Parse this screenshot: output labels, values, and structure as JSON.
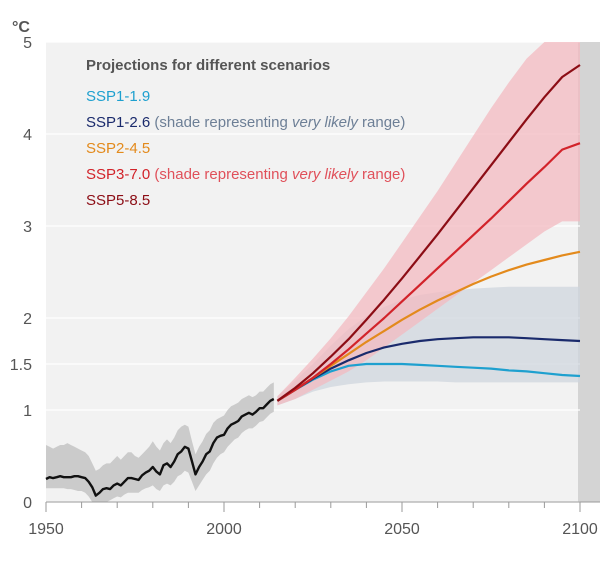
{
  "chart_data": {
    "type": "line",
    "unit_label": "°C",
    "xlim": [
      1950,
      2100
    ],
    "ylim": [
      0,
      5
    ],
    "y_ticks": [
      0,
      1,
      1.5,
      2,
      3,
      4,
      5
    ],
    "y_tick_labels": [
      "0",
      "1",
      "1.5",
      "2",
      "3",
      "4",
      "5"
    ],
    "x_ticks": [
      1950,
      2000,
      2050,
      2100
    ],
    "x_tick_labels": [
      "1950",
      "2000",
      "2050",
      "2100"
    ],
    "grid": true,
    "legend": {
      "title": "Projections for different scenarios",
      "placement": "top-left",
      "items": [
        {
          "label": "SSP1-1.9",
          "note": null
        },
        {
          "label": "SSP1-2.6",
          "note": {
            "prefix": " (shade representing ",
            "emph": "very likely",
            "suffix": " range)"
          }
        },
        {
          "label": "SSP2-4.5",
          "note": null
        },
        {
          "label": "SSP3-7.0",
          "note": {
            "prefix": " (shade representing ",
            "emph": "very likely",
            "suffix": " range)"
          }
        },
        {
          "label": "SSP5-8.5",
          "note": null
        }
      ]
    },
    "colors": {
      "historical": "#111111",
      "SSP1-1.9": "#1ea0cf",
      "SSP1-2.6": "#1a2a6c",
      "SSP2-4.5": "#e38a1c",
      "SSP3-7.0": "#d2232a",
      "SSP5-8.5": "#8c0d15",
      "band_hist": "#c6c6c6",
      "band_ssp126": "#cfd6de",
      "band_ssp370": "#f3b9c0"
    },
    "historical": {
      "x": [
        1950,
        1951,
        1952,
        1953,
        1954,
        1955,
        1956,
        1957,
        1958,
        1959,
        1960,
        1961,
        1962,
        1963,
        1964,
        1965,
        1966,
        1967,
        1968,
        1969,
        1970,
        1971,
        1972,
        1973,
        1974,
        1975,
        1976,
        1977,
        1978,
        1979,
        1980,
        1981,
        1982,
        1983,
        1984,
        1985,
        1986,
        1987,
        1988,
        1989,
        1990,
        1991,
        1992,
        1993,
        1994,
        1995,
        1996,
        1997,
        1998,
        1999,
        2000,
        2001,
        2002,
        2003,
        2004,
        2005,
        2006,
        2007,
        2008,
        2009,
        2010,
        2011,
        2012,
        2013,
        2014
      ],
      "y": [
        0.25,
        0.27,
        0.26,
        0.27,
        0.28,
        0.27,
        0.27,
        0.27,
        0.28,
        0.28,
        0.27,
        0.26,
        0.22,
        0.16,
        0.07,
        0.1,
        0.14,
        0.15,
        0.14,
        0.18,
        0.2,
        0.18,
        0.22,
        0.26,
        0.26,
        0.25,
        0.24,
        0.29,
        0.32,
        0.34,
        0.38,
        0.33,
        0.3,
        0.4,
        0.42,
        0.38,
        0.44,
        0.52,
        0.55,
        0.6,
        0.58,
        0.44,
        0.3,
        0.38,
        0.44,
        0.52,
        0.55,
        0.64,
        0.7,
        0.72,
        0.73,
        0.8,
        0.84,
        0.86,
        0.88,
        0.93,
        0.95,
        0.97,
        0.95,
        0.98,
        1.02,
        1.02,
        1.06,
        1.1,
        1.12
      ],
      "band_lower": [
        0.15,
        0.15,
        0.15,
        0.15,
        0.15,
        0.15,
        0.14,
        0.14,
        0.13,
        0.12,
        0.12,
        0.1,
        0.06,
        0.0,
        0.0,
        0.0,
        0.0,
        0.0,
        0.02,
        0.04,
        0.06,
        0.05,
        0.08,
        0.1,
        0.1,
        0.1,
        0.1,
        0.13,
        0.15,
        0.16,
        0.18,
        0.14,
        0.12,
        0.18,
        0.2,
        0.18,
        0.22,
        0.28,
        0.3,
        0.34,
        0.32,
        0.22,
        0.12,
        0.18,
        0.24,
        0.3,
        0.34,
        0.42,
        0.48,
        0.52,
        0.54,
        0.6,
        0.64,
        0.68,
        0.7,
        0.75,
        0.78,
        0.8,
        0.8,
        0.83,
        0.87,
        0.88,
        0.92,
        0.96,
        0.98
      ],
      "band_upper": [
        0.62,
        0.6,
        0.58,
        0.6,
        0.62,
        0.62,
        0.64,
        0.62,
        0.6,
        0.58,
        0.56,
        0.54,
        0.5,
        0.42,
        0.34,
        0.36,
        0.4,
        0.42,
        0.42,
        0.46,
        0.5,
        0.46,
        0.5,
        0.54,
        0.54,
        0.5,
        0.48,
        0.52,
        0.56,
        0.6,
        0.66,
        0.6,
        0.56,
        0.64,
        0.68,
        0.64,
        0.7,
        0.78,
        0.82,
        0.84,
        0.82,
        0.66,
        0.52,
        0.6,
        0.66,
        0.74,
        0.78,
        0.86,
        0.9,
        0.92,
        0.94,
        1.0,
        1.04,
        1.06,
        1.08,
        1.12,
        1.14,
        1.16,
        1.14,
        1.16,
        1.2,
        1.2,
        1.24,
        1.28,
        1.3
      ]
    },
    "projection_x": [
      2015,
      2020,
      2025,
      2030,
      2035,
      2040,
      2045,
      2050,
      2055,
      2060,
      2065,
      2070,
      2075,
      2080,
      2085,
      2090,
      2095,
      2100
    ],
    "series": [
      {
        "name": "SSP1-1.9",
        "values": [
          1.1,
          1.22,
          1.33,
          1.42,
          1.48,
          1.5,
          1.5,
          1.5,
          1.49,
          1.48,
          1.47,
          1.46,
          1.45,
          1.43,
          1.42,
          1.4,
          1.38,
          1.37
        ]
      },
      {
        "name": "SSP1-2.6",
        "values": [
          1.1,
          1.22,
          1.34,
          1.45,
          1.54,
          1.62,
          1.68,
          1.72,
          1.75,
          1.77,
          1.78,
          1.79,
          1.79,
          1.79,
          1.78,
          1.77,
          1.76,
          1.75
        ]
      },
      {
        "name": "SSP2-4.5",
        "values": [
          1.1,
          1.22,
          1.35,
          1.48,
          1.61,
          1.74,
          1.86,
          1.98,
          2.09,
          2.19,
          2.28,
          2.37,
          2.45,
          2.52,
          2.58,
          2.63,
          2.68,
          2.72
        ]
      },
      {
        "name": "SSP3-7.0",
        "values": [
          1.1,
          1.22,
          1.35,
          1.5,
          1.66,
          1.83,
          2.0,
          2.18,
          2.36,
          2.54,
          2.72,
          2.9,
          3.08,
          3.27,
          3.46,
          3.64,
          3.83,
          3.9
        ]
      },
      {
        "name": "SSP5-8.5",
        "values": [
          1.1,
          1.24,
          1.4,
          1.58,
          1.77,
          1.98,
          2.2,
          2.43,
          2.67,
          2.91,
          3.16,
          3.41,
          3.66,
          3.91,
          4.16,
          4.4,
          4.62,
          4.75
        ]
      }
    ],
    "bands": [
      {
        "name": "SSP1-2.6",
        "lower": [
          1.05,
          1.12,
          1.2,
          1.25,
          1.28,
          1.3,
          1.31,
          1.31,
          1.31,
          1.31,
          1.3,
          1.3,
          1.3,
          1.3,
          1.3,
          1.3,
          1.3,
          1.3
        ],
        "upper": [
          1.15,
          1.32,
          1.5,
          1.7,
          1.88,
          2.02,
          2.12,
          2.2,
          2.25,
          2.28,
          2.3,
          2.32,
          2.33,
          2.34,
          2.34,
          2.34,
          2.34,
          2.34
        ]
      },
      {
        "name": "SSP3-7.0",
        "lower": [
          1.05,
          1.12,
          1.22,
          1.32,
          1.42,
          1.54,
          1.68,
          1.82,
          1.96,
          2.1,
          2.24,
          2.38,
          2.52,
          2.66,
          2.8,
          2.94,
          3.05,
          3.05
        ],
        "upper": [
          1.15,
          1.35,
          1.56,
          1.78,
          2.02,
          2.28,
          2.54,
          2.82,
          3.1,
          3.38,
          3.68,
          3.98,
          4.28,
          4.56,
          4.82,
          5.0,
          5.0,
          5.0
        ]
      }
    ]
  }
}
